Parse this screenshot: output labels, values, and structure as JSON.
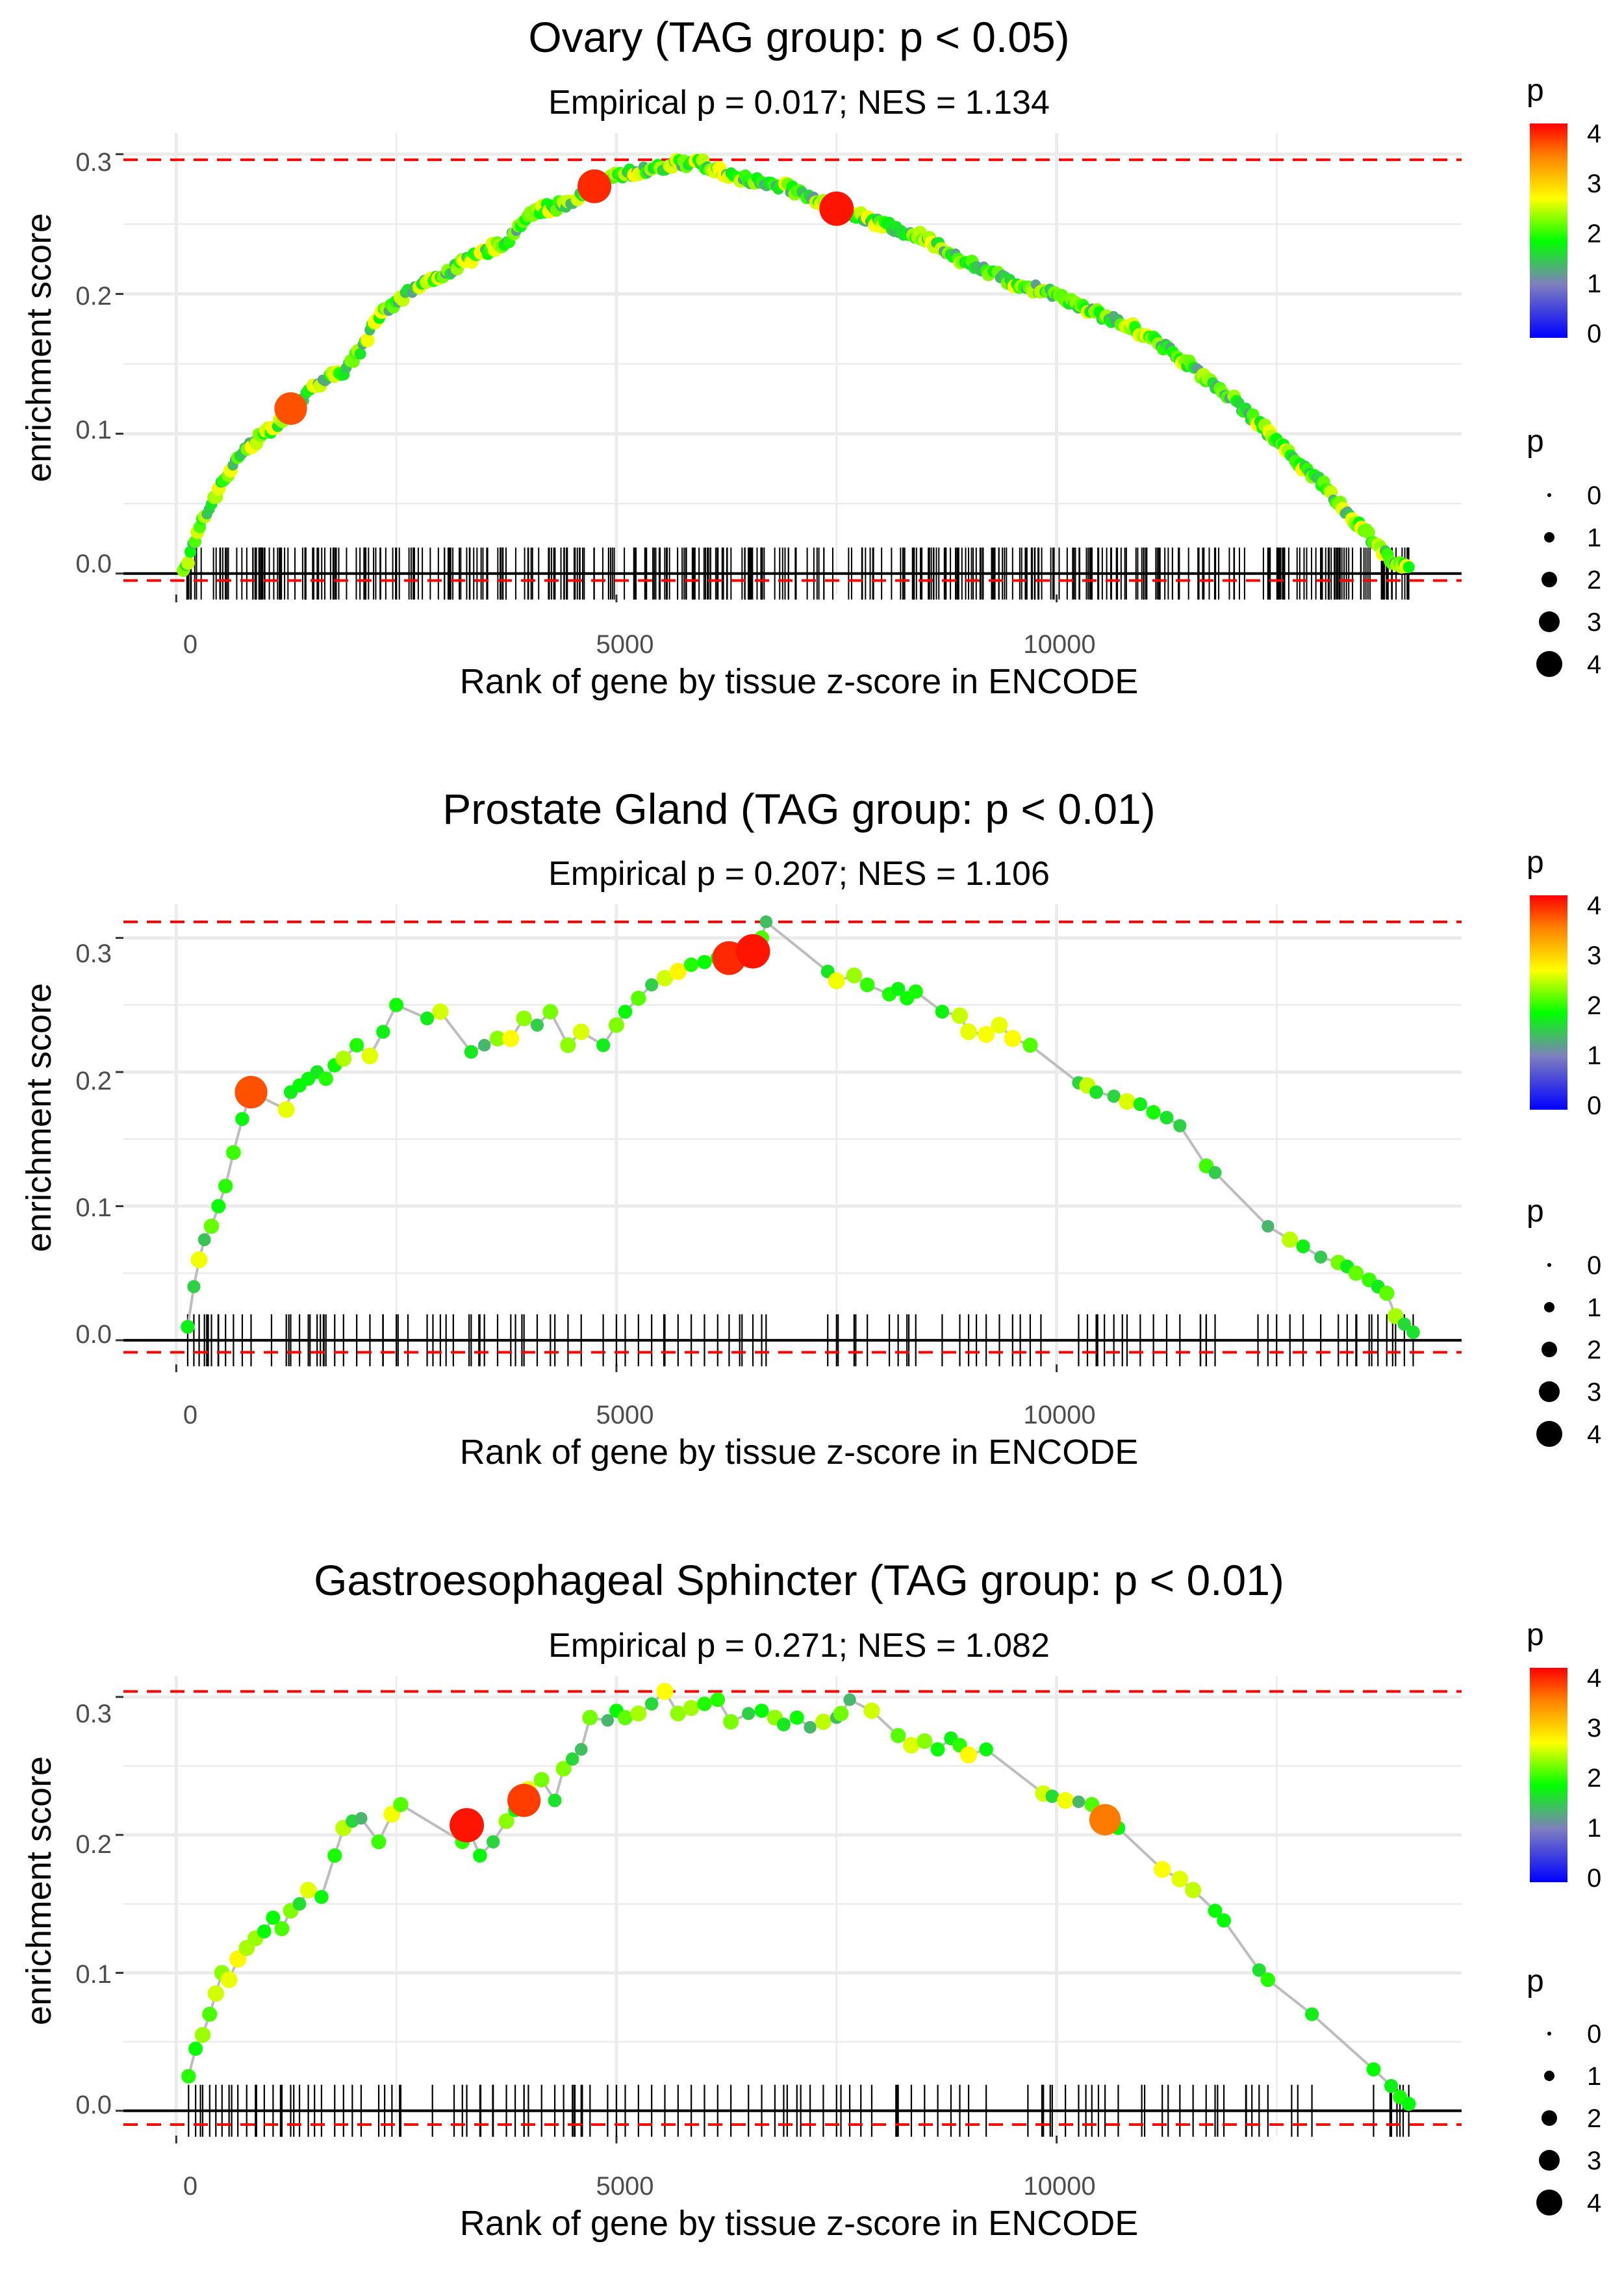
{
  "colors": {
    "grid": "#ebebeb",
    "threshold": "#ff0000",
    "axis_line": "#000000",
    "walk_line": "#bdbdbd",
    "tick_text": "#4d4d4d",
    "gradient": [
      "#0000ff",
      "#7f7fbf",
      "#00ff00",
      "#ffff00",
      "#ff8000",
      "#ff0000"
    ]
  },
  "chart_data": [
    {
      "type": "scatter",
      "title": "Ovary (TAG group: p < 0.05)",
      "subtitle": "Empirical p = 0.017; NES = 1.134",
      "xlabel": "Rank of gene by tissue z-score in ENCODE",
      "ylabel": "enrichment score",
      "xlim": [
        -600,
        14600
      ],
      "ylim": [
        -0.015,
        0.315
      ],
      "x_ticks": [
        0,
        5000,
        10000
      ],
      "x_tick_labels": [
        "0",
        "5000",
        "10000"
      ],
      "y_ticks": [
        0.0,
        0.1,
        0.2,
        0.3
      ],
      "y_tick_labels": [
        "0.0",
        "0.1",
        "0.2",
        "0.3"
      ],
      "upper_threshold": 0.296,
      "lower_threshold": -0.005,
      "n_genes": 14000,
      "legend_color": {
        "title": "p",
        "range": [
          0,
          4.2
        ],
        "labels": [
          "4",
          "3",
          "2",
          "1",
          "0"
        ]
      },
      "legend_size": {
        "title": "p",
        "labels": [
          "0",
          "1",
          "2",
          "3",
          "4"
        ]
      },
      "walk_style": "dense",
      "highlighted_points": [
        {
          "x": 1300,
          "y": 0.118,
          "p": 3.8
        },
        {
          "x": 4750,
          "y": 0.277,
          "p": 4.0
        },
        {
          "x": 7500,
          "y": 0.261,
          "p": 4.1
        }
      ],
      "series": [
        {
          "name": "walk",
          "x": [
            80,
            300,
            700,
            1000,
            1300,
            1600,
            1900,
            2100,
            2300,
            2600,
            2900,
            3200,
            3500,
            3800,
            4000,
            4250,
            4500,
            4750,
            5000,
            5300,
            5600,
            5900,
            6200,
            6600,
            7000,
            7500,
            8000,
            8500,
            9000,
            9500,
            10000,
            10500,
            11000,
            11500,
            12000,
            12500,
            13000,
            13500,
            13800,
            14000
          ],
          "y": [
            0.0,
            0.04,
            0.085,
            0.1,
            0.115,
            0.135,
            0.145,
            0.16,
            0.185,
            0.2,
            0.21,
            0.22,
            0.23,
            0.24,
            0.258,
            0.262,
            0.265,
            0.277,
            0.285,
            0.288,
            0.292,
            0.295,
            0.287,
            0.28,
            0.275,
            0.261,
            0.25,
            0.24,
            0.222,
            0.208,
            0.2,
            0.185,
            0.172,
            0.15,
            0.125,
            0.095,
            0.065,
            0.03,
            0.01,
            0.003
          ]
        }
      ]
    },
    {
      "type": "scatter",
      "title": "Prostate Gland (TAG group: p < 0.01)",
      "subtitle": "Empirical p = 0.207; NES = 1.106",
      "xlabel": "Rank of gene by tissue z-score in ENCODE",
      "ylabel": "enrichment score",
      "xlim": [
        -600,
        14600
      ],
      "ylim": [
        -0.018,
        0.325
      ],
      "x_ticks": [
        0,
        5000,
        10000
      ],
      "x_tick_labels": [
        "0",
        "5000",
        "10000"
      ],
      "y_ticks": [
        0.0,
        0.1,
        0.2,
        0.3
      ],
      "y_tick_labels": [
        "0.0",
        "0.1",
        "0.2",
        "0.3"
      ],
      "upper_threshold": 0.312,
      "lower_threshold": -0.009,
      "n_genes": 14000,
      "legend_color": {
        "title": "p",
        "range": [
          0,
          4.2
        ],
        "labels": [
          "4",
          "3",
          "2",
          "1",
          "0"
        ]
      },
      "legend_size": {
        "title": "p",
        "labels": [
          "0",
          "1",
          "2",
          "3",
          "4"
        ]
      },
      "walk_style": "sparse",
      "highlighted_points": [
        {
          "x": 850,
          "y": 0.185,
          "p": 3.8
        },
        {
          "x": 6280,
          "y": 0.285,
          "p": 4.0
        },
        {
          "x": 6550,
          "y": 0.29,
          "p": 4.1
        }
      ],
      "series": [
        {
          "name": "walk",
          "x": [
            130,
            200,
            260,
            320,
            400,
            480,
            560,
            650,
            750,
            850,
            1250,
            1300,
            1400,
            1500,
            1600,
            1700,
            1800,
            1900,
            2050,
            2200,
            2350,
            2500,
            2850,
            3000,
            3350,
            3500,
            3650,
            3800,
            3950,
            4100,
            4250,
            4450,
            4600,
            4850,
            5000,
            5100,
            5250,
            5400,
            5550,
            5700,
            5850,
            6000,
            6150,
            6280,
            6400,
            6550,
            6650,
            6700,
            7400,
            7500,
            7700,
            7850,
            8100,
            8200,
            8300,
            8400,
            8700,
            8900,
            9000,
            9200,
            9350,
            9500,
            9700,
            10250,
            10350,
            10450,
            10650,
            10800,
            10950,
            11100,
            11250,
            11400,
            11700,
            11800,
            12400,
            12650,
            12800,
            13000,
            13200,
            13300,
            13400,
            13550,
            13650,
            13750,
            13850,
            13950,
            14050
          ],
          "y": [
            0.01,
            0.04,
            0.06,
            0.075,
            0.085,
            0.1,
            0.115,
            0.14,
            0.165,
            0.185,
            0.172,
            0.185,
            0.19,
            0.195,
            0.2,
            0.195,
            0.205,
            0.21,
            0.22,
            0.212,
            0.23,
            0.25,
            0.24,
            0.245,
            0.215,
            0.22,
            0.225,
            0.225,
            0.24,
            0.235,
            0.245,
            0.22,
            0.23,
            0.22,
            0.235,
            0.245,
            0.255,
            0.265,
            0.27,
            0.275,
            0.28,
            0.282,
            0.285,
            0.285,
            0.288,
            0.29,
            0.3,
            0.312,
            0.275,
            0.268,
            0.272,
            0.265,
            0.258,
            0.262,
            0.255,
            0.26,
            0.245,
            0.242,
            0.23,
            0.228,
            0.235,
            0.225,
            0.22,
            0.192,
            0.19,
            0.185,
            0.182,
            0.178,
            0.176,
            0.17,
            0.166,
            0.16,
            0.13,
            0.125,
            0.085,
            0.075,
            0.07,
            0.062,
            0.058,
            0.055,
            0.05,
            0.045,
            0.04,
            0.035,
            0.018,
            0.012,
            0.006
          ]
        }
      ]
    },
    {
      "type": "scatter",
      "title": "Gastroesophageal Sphincter (TAG group: p < 0.01)",
      "subtitle": "Empirical p = 0.271; NES = 1.082",
      "xlabel": "Rank of gene by tissue z-score in ENCODE",
      "ylabel": "enrichment score",
      "xlim": [
        -600,
        14600
      ],
      "ylim": [
        -0.018,
        0.315
      ],
      "x_ticks": [
        0,
        5000,
        10000
      ],
      "x_tick_labels": [
        "0",
        "5000",
        "10000"
      ],
      "y_ticks": [
        0.0,
        0.1,
        0.2,
        0.3
      ],
      "y_tick_labels": [
        "0.0",
        "0.1",
        "0.2",
        "0.3"
      ],
      "upper_threshold": 0.304,
      "lower_threshold": -0.01,
      "n_genes": 14000,
      "legend_color": {
        "title": "p",
        "range": [
          0,
          4.2
        ],
        "labels": [
          "4",
          "3",
          "2",
          "1",
          "0"
        ]
      },
      "legend_size": {
        "title": "p",
        "labels": [
          "0",
          "1",
          "2",
          "3",
          "4"
        ]
      },
      "walk_style": "sparse",
      "highlighted_points": [
        {
          "x": 3300,
          "y": 0.207,
          "p": 4.1
        },
        {
          "x": 3950,
          "y": 0.225,
          "p": 3.9
        },
        {
          "x": 10550,
          "y": 0.211,
          "p": 3.6
        }
      ],
      "series": [
        {
          "name": "walk",
          "x": [
            140,
            220,
            300,
            380,
            450,
            520,
            600,
            700,
            800,
            900,
            1000,
            1100,
            1200,
            1300,
            1400,
            1500,
            1650,
            1800,
            1900,
            2000,
            2100,
            2300,
            2450,
            2550,
            3250,
            3300,
            3450,
            3600,
            3750,
            3850,
            3950,
            4000,
            4150,
            4300,
            4400,
            4500,
            4600,
            4700,
            4900,
            5000,
            5100,
            5250,
            5400,
            5550,
            5700,
            5850,
            6000,
            6150,
            6300,
            6500,
            6650,
            6800,
            6900,
            7050,
            7200,
            7350,
            7500,
            7550,
            7650,
            7900,
            8200,
            8350,
            8500,
            8650,
            8800,
            8900,
            9000,
            9200,
            9850,
            9950,
            10100,
            10250,
            10400,
            10550,
            10700,
            11200,
            11400,
            11550,
            11800,
            11900,
            12300,
            12400,
            12900,
            13600,
            13800,
            13900,
            14000
          ],
          "y": [
            0.025,
            0.045,
            0.055,
            0.07,
            0.085,
            0.1,
            0.095,
            0.11,
            0.118,
            0.125,
            0.13,
            0.14,
            0.132,
            0.145,
            0.15,
            0.16,
            0.155,
            0.185,
            0.205,
            0.21,
            0.212,
            0.195,
            0.215,
            0.222,
            0.195,
            0.207,
            0.185,
            0.195,
            0.21,
            0.218,
            0.225,
            0.233,
            0.24,
            0.225,
            0.248,
            0.255,
            0.262,
            0.285,
            0.283,
            0.29,
            0.285,
            0.288,
            0.295,
            0.304,
            0.288,
            0.292,
            0.295,
            0.298,
            0.282,
            0.288,
            0.29,
            0.285,
            0.28,
            0.285,
            0.278,
            0.282,
            0.285,
            0.288,
            0.298,
            0.29,
            0.272,
            0.265,
            0.268,
            0.262,
            0.27,
            0.265,
            0.258,
            0.262,
            0.23,
            0.228,
            0.225,
            0.224,
            0.222,
            0.211,
            0.205,
            0.175,
            0.168,
            0.16,
            0.145,
            0.138,
            0.102,
            0.095,
            0.07,
            0.03,
            0.018,
            0.01,
            0.005
          ]
        }
      ]
    }
  ]
}
